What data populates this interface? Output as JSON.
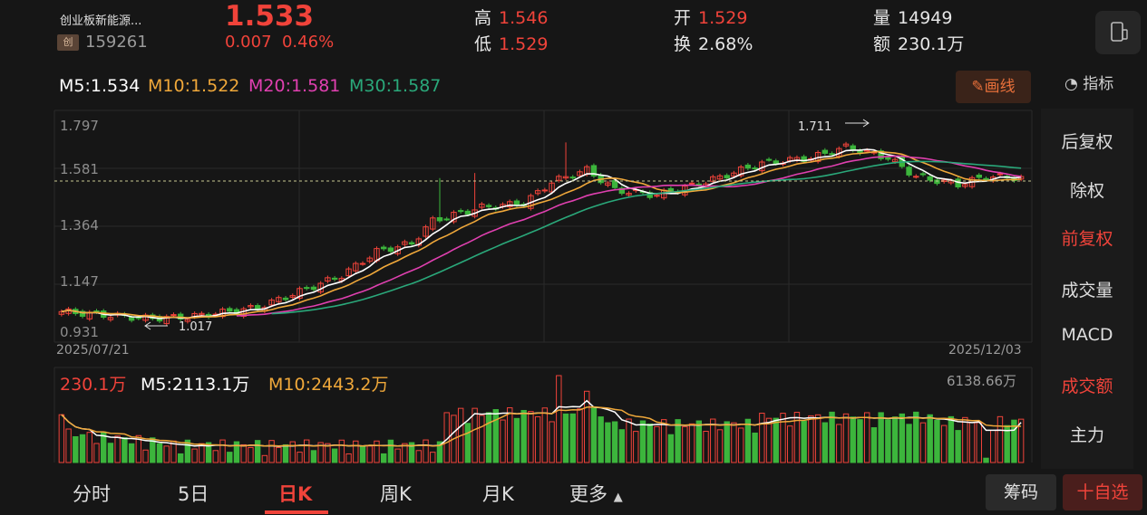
{
  "header": {
    "stock_name": "创业板新能源...",
    "board_badge": "创",
    "code": "159261",
    "price": "1.533",
    "change": "0.007",
    "change_pct": "0.46%",
    "high_label": "高",
    "high": "1.546",
    "low_label": "低",
    "low": "1.529",
    "open_label": "开",
    "open": "1.529",
    "turnover_label": "换",
    "turnover": "2.68%",
    "volume_label": "量",
    "volume": "14949",
    "amount_label": "额",
    "amount": "230.1万"
  },
  "ma": {
    "m5": "M5:1.534",
    "m10": "M10:1.522",
    "m20": "M20:1.581",
    "m30": "M30:1.587",
    "draw_label": "画线",
    "indicator_label": "指标"
  },
  "chart": {
    "y_ticks": [
      "1.797",
      "1.581",
      "1.364",
      "1.147",
      "0.931"
    ],
    "start_date": "2025/07/21",
    "end_date": "2025/12/03",
    "max_annot": "1.711",
    "min_annot": "1.017",
    "current_price_line": 1.533,
    "y_range": [
      0.931,
      1.797
    ]
  },
  "volume": {
    "current": "230.1万",
    "m5": "M5:2113.1万",
    "m10": "M10:2443.2万",
    "max": "6138.66万"
  },
  "side_menu": [
    "后复权",
    "除权",
    "前复权",
    "成交量",
    "MACD",
    "成交额",
    "主力"
  ],
  "tabs": [
    "分时",
    "5日",
    "日K",
    "周K",
    "月K",
    "更多"
  ],
  "buttons": {
    "chips": "筹码",
    "add_watch": "十自选"
  },
  "colors": {
    "up": "#f0433a",
    "down": "#3cb53c",
    "m5": "#ffffff",
    "m10": "#f0a83a",
    "m20": "#e040b0",
    "m30": "#2aa87a"
  }
}
